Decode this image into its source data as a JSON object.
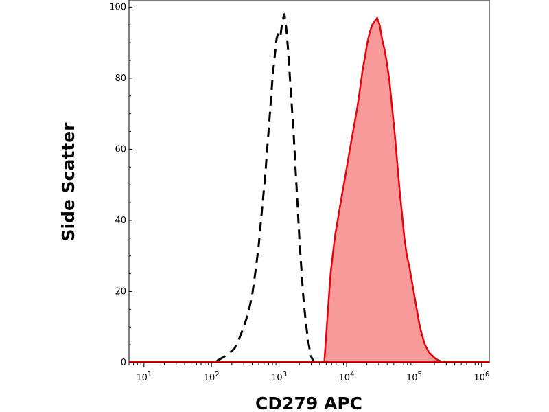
{
  "chart_data": {
    "type": "area",
    "title": "",
    "xlabel": "CD279 APC",
    "ylabel": "Side Scatter",
    "x_scale": "log",
    "xlim": [
      6,
      1300000
    ],
    "ylim": [
      0,
      102
    ],
    "grid": false,
    "legend": "none",
    "x_ticks": [
      {
        "value": 10,
        "base": "10",
        "exp": "1"
      },
      {
        "value": 100,
        "base": "10",
        "exp": "2"
      },
      {
        "value": 1000,
        "base": "10",
        "exp": "3"
      },
      {
        "value": 10000,
        "base": "10",
        "exp": "4"
      },
      {
        "value": 100000,
        "base": "10",
        "exp": "5"
      },
      {
        "value": 1000000,
        "base": "10",
        "exp": "6"
      }
    ],
    "y_ticks": [
      {
        "value": 0,
        "label": "0"
      },
      {
        "value": 20,
        "label": "20"
      },
      {
        "value": 40,
        "label": "40"
      },
      {
        "value": 60,
        "label": "60"
      },
      {
        "value": 80,
        "label": "80"
      },
      {
        "value": 100,
        "label": "100"
      }
    ],
    "series": [
      {
        "style": "dashed-outline",
        "color": "#000000",
        "x": [
          120,
          150,
          180,
          220,
          260,
          300,
          350,
          400,
          450,
          500,
          560,
          620,
          680,
          740,
          800,
          860,
          920,
          980,
          1050,
          1120,
          1200,
          1280,
          1360,
          1450,
          1550,
          1650,
          1750,
          1870,
          2000,
          2150,
          2300,
          2500,
          2700,
          2950,
          3200
        ],
        "y": [
          0.5,
          1.5,
          2.5,
          4,
          7,
          10,
          14,
          19,
          26,
          33,
          43,
          52,
          62,
          71,
          80,
          86,
          91,
          93,
          92,
          96,
          98,
          94,
          88,
          80,
          72,
          64,
          55,
          45,
          35,
          26,
          18,
          11,
          6,
          2,
          0.5
        ]
      },
      {
        "style": "filled",
        "color": "#e8000b",
        "fill": "#f99a9a",
        "x": [
          4700,
          5000,
          5400,
          5800,
          6300,
          6800,
          7400,
          8000,
          8700,
          9500,
          10300,
          11200,
          12200,
          13300,
          14500,
          15800,
          17200,
          18700,
          20300,
          22100,
          24000,
          26100,
          28400,
          30900,
          33600,
          36600,
          39800,
          43300,
          47100,
          51300,
          55800,
          60700,
          66100,
          71900,
          78200,
          85100,
          92600,
          100800,
          109600,
          119300,
          130000,
          145000,
          165000,
          185000,
          210000,
          240000,
          270000
        ],
        "y": [
          0.5,
          8,
          17,
          25,
          31,
          36,
          40,
          44,
          48,
          52,
          56,
          60,
          64,
          68,
          72,
          77,
          82,
          86,
          90,
          93,
          95,
          96,
          97,
          95,
          91,
          88,
          84,
          79,
          72,
          65,
          57,
          49,
          42,
          35,
          30,
          27,
          23,
          19,
          15,
          11,
          8,
          5,
          3,
          2,
          1,
          0.5,
          0.2
        ]
      }
    ]
  }
}
